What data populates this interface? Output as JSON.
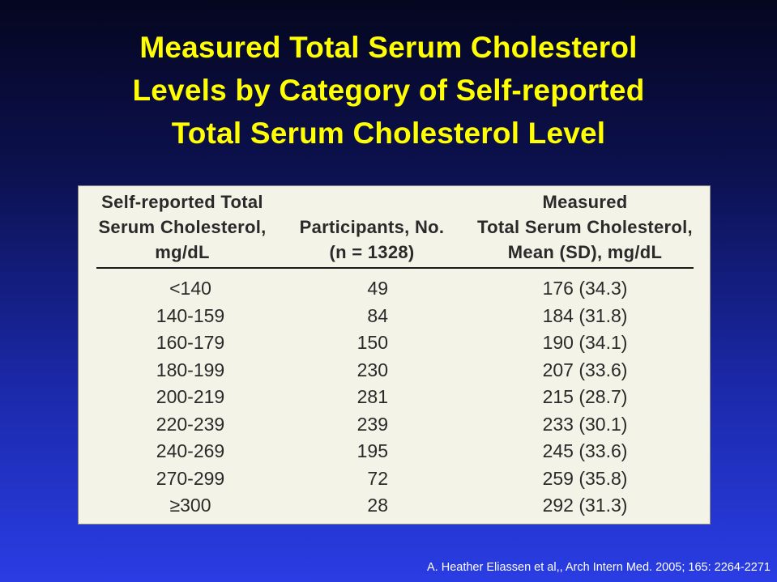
{
  "title": {
    "line1": "Measured Total Serum Cholesterol",
    "line2": "Levels by Category of Self-reported",
    "line3": "Total Serum Cholesterol Level"
  },
  "table": {
    "headers": {
      "col1": [
        "Self-reported Total",
        "Serum Cholesterol,",
        "mg/dL"
      ],
      "col2": [
        "Participants, No.",
        "(n = 1328)"
      ],
      "col3": [
        "Measured",
        "Total Serum Cholesterol,",
        "Mean (SD), mg/dL"
      ]
    },
    "rows": [
      [
        "<140",
        "49",
        "176 (34.3)"
      ],
      [
        "140-159",
        "84",
        "184 (31.8)"
      ],
      [
        "160-179",
        "150",
        "190 (34.1)"
      ],
      [
        "180-199",
        "230",
        "207 (33.6)"
      ],
      [
        "200-219",
        "281",
        "215 (28.7)"
      ],
      [
        "220-239",
        "239",
        "233 (30.1)"
      ],
      [
        "240-269",
        "195",
        "245 (33.6)"
      ],
      [
        "270-299",
        "72",
        "259 (35.8)"
      ],
      [
        "≥300",
        "28",
        "292 (31.3)"
      ]
    ]
  },
  "citation": "A. Heather Eliassen et al,, Arch Intern Med. 2005; 165: 2264-2271",
  "colors": {
    "title": "#ffff00",
    "background_top": "#05061f",
    "background_bottom": "#2a3de4",
    "panel": "#f4f3e7",
    "citation": "#ffffff"
  }
}
